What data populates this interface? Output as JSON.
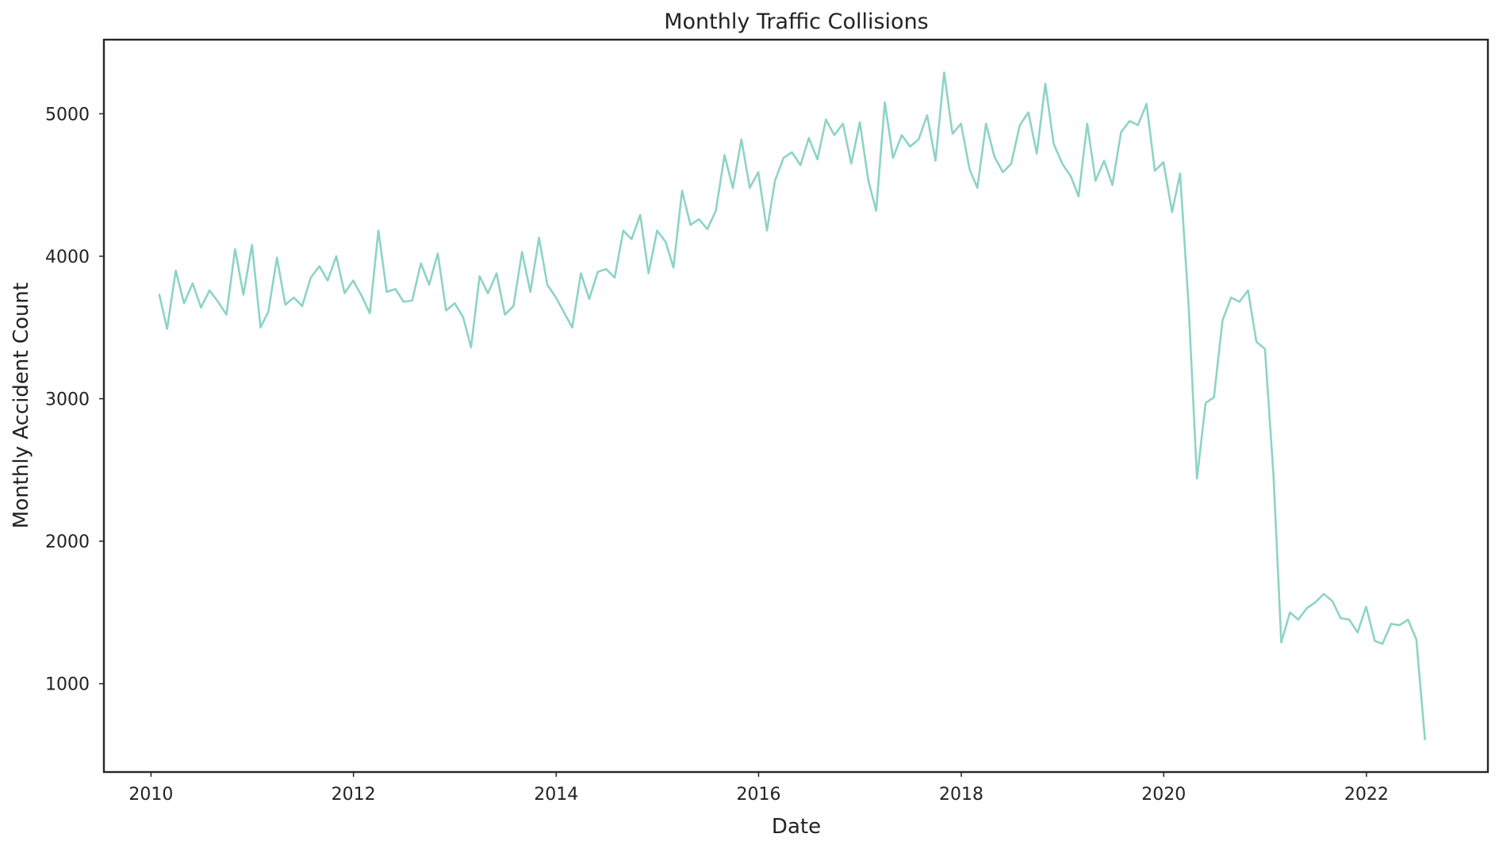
{
  "chart_data": {
    "type": "line",
    "title": "Monthly Traffic Collisions",
    "xlabel": "Date",
    "ylabel": "Monthly Accident Count",
    "x_ticks": [
      "2010",
      "2012",
      "2014",
      "2016",
      "2018",
      "2020",
      "2022"
    ],
    "y_ticks": [
      "1000",
      "2000",
      "3000",
      "4000",
      "5000"
    ],
    "xlim": [
      "2009-07-15",
      "2023-03-15"
    ],
    "ylim": [
      380,
      5520
    ],
    "grid": false,
    "legend": "none",
    "line_color": "#8dd3c7",
    "series": [
      {
        "x": [
          "2010-01-31",
          "2010-02-28",
          "2010-03-31",
          "2010-04-30",
          "2010-05-31",
          "2010-06-30",
          "2010-07-31",
          "2010-08-31",
          "2010-09-30",
          "2010-10-31",
          "2010-11-30",
          "2010-12-31",
          "2011-01-31",
          "2011-02-28",
          "2011-03-31",
          "2011-04-30",
          "2011-05-31",
          "2011-06-30",
          "2011-07-31",
          "2011-08-31",
          "2011-09-30",
          "2011-10-31",
          "2011-11-30",
          "2011-12-31",
          "2012-01-31",
          "2012-02-29",
          "2012-03-31",
          "2012-04-30",
          "2012-05-31",
          "2012-06-30",
          "2012-07-31",
          "2012-08-31",
          "2012-09-30",
          "2012-10-31",
          "2012-11-30",
          "2012-12-31",
          "2013-01-31",
          "2013-02-28",
          "2013-03-31",
          "2013-04-30",
          "2013-05-31",
          "2013-06-30",
          "2013-07-31",
          "2013-08-31",
          "2013-09-30",
          "2013-10-31",
          "2013-11-30",
          "2013-12-31",
          "2014-01-31",
          "2014-02-28",
          "2014-03-31",
          "2014-04-30",
          "2014-05-31",
          "2014-06-30",
          "2014-07-31",
          "2014-08-31",
          "2014-09-30",
          "2014-10-31",
          "2014-11-30",
          "2014-12-31",
          "2015-01-31",
          "2015-02-28",
          "2015-03-31",
          "2015-04-30",
          "2015-05-31",
          "2015-06-30",
          "2015-07-31",
          "2015-08-31",
          "2015-09-30",
          "2015-10-31",
          "2015-11-30",
          "2015-12-31",
          "2016-01-31",
          "2016-02-29",
          "2016-03-31",
          "2016-04-30",
          "2016-05-31",
          "2016-06-30",
          "2016-07-31",
          "2016-08-31",
          "2016-09-30",
          "2016-10-31",
          "2016-11-30",
          "2016-12-31",
          "2017-01-31",
          "2017-02-28",
          "2017-03-31",
          "2017-04-30",
          "2017-05-31",
          "2017-06-30",
          "2017-07-31",
          "2017-08-31",
          "2017-09-30",
          "2017-10-31",
          "2017-11-30",
          "2017-12-31",
          "2018-01-31",
          "2018-02-28",
          "2018-03-31",
          "2018-04-30",
          "2018-05-31",
          "2018-06-30",
          "2018-07-31",
          "2018-08-31",
          "2018-09-30",
          "2018-10-31",
          "2018-11-30",
          "2018-12-31",
          "2019-01-31",
          "2019-02-28",
          "2019-03-31",
          "2019-04-30",
          "2019-05-31",
          "2019-06-30",
          "2019-07-31",
          "2019-08-31",
          "2019-09-30",
          "2019-10-31",
          "2019-11-30",
          "2019-12-31",
          "2020-01-31",
          "2020-02-29",
          "2020-03-31",
          "2020-04-30",
          "2020-05-31",
          "2020-06-30",
          "2020-07-31",
          "2020-08-31",
          "2020-09-30",
          "2020-10-31",
          "2020-11-30",
          "2020-12-31",
          "2021-01-31",
          "2021-02-28",
          "2021-03-31",
          "2021-04-30",
          "2021-05-31",
          "2021-06-30",
          "2021-07-31",
          "2021-08-31",
          "2021-09-30",
          "2021-10-31",
          "2021-11-30",
          "2021-12-31",
          "2022-01-31",
          "2022-02-28",
          "2022-03-31",
          "2022-04-30",
          "2022-05-31",
          "2022-06-30",
          "2022-07-31"
        ],
        "y": [
          3730,
          3490,
          3900,
          3670,
          3810,
          3640,
          3760,
          3680,
          3590,
          4050,
          3730,
          4080,
          3500,
          3610,
          3990,
          3660,
          3710,
          3650,
          3850,
          3930,
          3830,
          4000,
          3740,
          3830,
          3720,
          3600,
          4180,
          3750,
          3770,
          3680,
          3690,
          3950,
          3800,
          4020,
          3620,
          3670,
          3570,
          3360,
          3860,
          3740,
          3880,
          3590,
          3650,
          4030,
          3750,
          4130,
          3800,
          3710,
          3600,
          3500,
          3880,
          3700,
          3890,
          3910,
          3850,
          4180,
          4120,
          4290,
          3880,
          4180,
          4100,
          3920,
          4460,
          4220,
          4260,
          4190,
          4320,
          4710,
          4480,
          4820,
          4480,
          4590,
          4180,
          4530,
          4690,
          4730,
          4640,
          4830,
          4680,
          4960,
          4850,
          4930,
          4650,
          4940,
          4530,
          4320,
          5080,
          4690,
          4850,
          4770,
          4820,
          4990,
          4670,
          5290,
          4860,
          4930,
          4610,
          4480,
          4930,
          4700,
          4590,
          4650,
          4920,
          5010,
          4720,
          5210,
          4790,
          4650,
          4560,
          4420,
          4930,
          4530,
          4670,
          4500,
          4870,
          4950,
          4920,
          5070,
          4600,
          4660,
          4310,
          4580,
          3650,
          2440,
          2970,
          3010,
          3550,
          3710,
          3680,
          3760,
          3400,
          3350,
          2460,
          1290,
          1500,
          1450,
          1530,
          1570,
          1630,
          1580,
          1460,
          1450,
          1360,
          1540,
          1300,
          1280,
          1420,
          1410,
          1450,
          1310,
          610
        ]
      }
    ]
  }
}
